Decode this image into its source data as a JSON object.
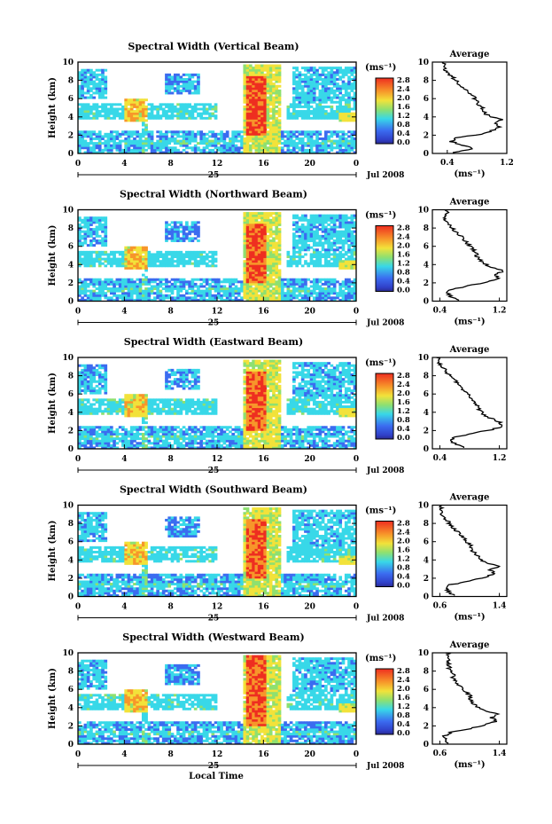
{
  "figure": {
    "shared_xlabel": "Local Time",
    "date_label": "Jul 2008",
    "day_label": "25",
    "x_ticks": [
      "0",
      "4",
      "8",
      "12",
      "16",
      "20",
      "0"
    ],
    "colorbar_unit": "(ms⁻¹)",
    "colorbar_ticks": [
      "2.8",
      "2.4",
      "2.0",
      "1.6",
      "1.2",
      "0.8",
      "0.4",
      "0.0"
    ],
    "colors": {
      "low": "#2a2aa8",
      "blue": "#3b6cf0",
      "cyan": "#38d8e8",
      "green": "#8ee070",
      "yellow": "#f2e23a",
      "orange": "#f7962a",
      "red": "#ee2e20"
    }
  },
  "chart_data": [
    {
      "type": "heatmap",
      "title": "Spectral Width (Vertical Beam)",
      "ylabel": "Height (km)",
      "xlabel": "Local Time",
      "xlim": [
        0,
        24
      ],
      "ylim": [
        0,
        10
      ],
      "y_ticks": [
        "0",
        "2",
        "4",
        "6",
        "8",
        "10"
      ],
      "colorbar": {
        "label": "(ms⁻¹)",
        "range": [
          0.0,
          2.8
        ]
      },
      "profile": {
        "title": "Average",
        "xlabel": "(ms⁻¹)",
        "xlim": [
          0.2,
          1.2
        ],
        "x_ticks": [
          "0.4",
          "1.2"
        ],
        "y_ticks": [
          "0",
          "2",
          "4",
          "6",
          "8",
          "10"
        ],
        "height": [
          0.4,
          0.8,
          1.2,
          1.6,
          2.0,
          2.4,
          2.8,
          3.2,
          3.6,
          4.0,
          4.4,
          4.8,
          5.2,
          5.6,
          6.0,
          6.4,
          6.8,
          7.2,
          7.6,
          8.0,
          8.4,
          8.8,
          9.2,
          9.6,
          10.0
        ],
        "values": [
          0.5,
          0.75,
          0.62,
          0.45,
          0.52,
          0.85,
          1.0,
          1.12,
          1.02,
          1.12,
          0.95,
          0.9,
          0.88,
          0.82,
          0.82,
          0.76,
          0.72,
          0.66,
          0.6,
          0.55,
          0.5,
          0.45,
          0.4,
          0.37,
          0.35
        ]
      }
    },
    {
      "type": "heatmap",
      "title": "Spectral Width (Northward Beam)",
      "ylabel": "Height (km)",
      "xlabel": "Local Time",
      "xlim": [
        0,
        24
      ],
      "ylim": [
        0,
        10
      ],
      "y_ticks": [
        "0",
        "2",
        "4",
        "6",
        "8",
        "10"
      ],
      "colorbar": {
        "label": "(ms⁻¹)",
        "range": [
          0.0,
          2.8
        ]
      },
      "profile": {
        "title": "Average",
        "xlabel": "(ms⁻¹)",
        "xlim": [
          0.3,
          1.3
        ],
        "x_ticks": [
          "0.4",
          "1.2"
        ],
        "y_ticks": [
          "0",
          "2",
          "4",
          "6",
          "8",
          "10"
        ],
        "height": [
          0.4,
          0.8,
          1.2,
          1.6,
          2.0,
          2.4,
          2.8,
          3.2,
          3.6,
          4.0,
          4.4,
          4.8,
          5.2,
          5.6,
          6.0,
          6.4,
          6.8,
          7.2,
          7.6,
          8.0,
          8.4,
          8.8,
          9.2,
          9.6,
          10.0
        ],
        "values": [
          0.65,
          0.55,
          0.5,
          0.55,
          0.8,
          1.05,
          1.2,
          1.15,
          1.25,
          1.1,
          1.0,
          0.95,
          0.9,
          0.88,
          0.85,
          0.8,
          0.75,
          0.72,
          0.66,
          0.6,
          0.55,
          0.5,
          0.48,
          0.45,
          0.5
        ]
      }
    },
    {
      "type": "heatmap",
      "title": "Spectral Width (Eastward Beam)",
      "ylabel": "Height (km)",
      "xlabel": "Local Time",
      "xlim": [
        0,
        24
      ],
      "ylim": [
        0,
        10
      ],
      "y_ticks": [
        "0",
        "2",
        "4",
        "6",
        "8",
        "10"
      ],
      "colorbar": {
        "label": "(ms⁻¹)",
        "range": [
          0.0,
          2.8
        ]
      },
      "profile": {
        "title": "Average",
        "xlabel": "",
        "xlim": [
          0.3,
          1.3
        ],
        "x_ticks": [
          "0.4",
          "1.2"
        ],
        "y_ticks": [
          "0",
          "2",
          "4",
          "6",
          "8",
          "10"
        ],
        "height": [
          0.4,
          0.8,
          1.2,
          1.6,
          2.0,
          2.4,
          2.8,
          3.2,
          3.6,
          4.0,
          4.4,
          4.8,
          5.2,
          5.6,
          6.0,
          6.4,
          6.8,
          7.2,
          7.6,
          8.0,
          8.4,
          8.8,
          9.2,
          9.6,
          10.0
        ],
        "values": [
          0.75,
          0.6,
          0.55,
          0.6,
          0.85,
          1.1,
          1.25,
          1.2,
          1.1,
          1.0,
          0.95,
          0.92,
          0.88,
          0.85,
          0.8,
          0.76,
          0.72,
          0.68,
          0.62,
          0.58,
          0.52,
          0.48,
          0.44,
          0.4,
          0.38
        ]
      }
    },
    {
      "type": "heatmap",
      "title": "Spectral Width (Southward Beam)",
      "ylabel": "Height (km)",
      "xlabel": "Local Time",
      "xlim": [
        0,
        24
      ],
      "ylim": [
        0,
        10
      ],
      "y_ticks": [
        "0",
        "2",
        "4",
        "6",
        "8",
        "10"
      ],
      "colorbar": {
        "label": "(ms⁻¹)",
        "range": [
          0.0,
          2.8
        ]
      },
      "profile": {
        "title": "Average",
        "xlabel": "(ms⁻¹)",
        "xlim": [
          0.5,
          1.5
        ],
        "x_ticks": [
          "0.6",
          "1.4"
        ],
        "y_ticks": [
          "0",
          "2",
          "4",
          "6",
          "8",
          "10"
        ],
        "height": [
          0.4,
          0.8,
          1.2,
          1.6,
          2.0,
          2.4,
          2.8,
          3.2,
          3.6,
          4.0,
          4.4,
          4.8,
          5.2,
          5.6,
          6.0,
          6.4,
          6.8,
          7.2,
          7.6,
          8.0,
          8.4,
          8.8,
          9.2,
          9.6,
          10.0
        ],
        "values": [
          0.8,
          0.72,
          0.68,
          0.75,
          1.0,
          1.2,
          1.35,
          1.28,
          1.4,
          1.2,
          1.15,
          1.1,
          1.05,
          1.02,
          1.0,
          0.95,
          0.9,
          0.86,
          0.8,
          0.76,
          0.72,
          0.68,
          0.64,
          0.62,
          0.62
        ]
      }
    },
    {
      "type": "heatmap",
      "title": "Spectral Width (Westward Beam)",
      "ylabel": "Height (km)",
      "xlabel": "Local Time",
      "xlim": [
        0,
        24
      ],
      "ylim": [
        0,
        10
      ],
      "y_ticks": [
        "0",
        "2",
        "4",
        "6",
        "8",
        "10"
      ],
      "colorbar": {
        "label": "(ms⁻¹)",
        "range": [
          0.0,
          2.8
        ]
      },
      "profile": {
        "title": "Average",
        "xlabel": "(ms⁻¹)",
        "xlim": [
          0.5,
          1.5
        ],
        "x_ticks": [
          "0.6",
          "1.4"
        ],
        "y_ticks": [
          "0",
          "2",
          "4",
          "6",
          "8",
          "10"
        ],
        "height": [
          0.4,
          0.8,
          1.2,
          1.6,
          2.0,
          2.4,
          2.8,
          3.2,
          3.6,
          4.0,
          4.4,
          4.8,
          5.2,
          5.6,
          6.0,
          6.4,
          6.8,
          7.2,
          7.6,
          8.0,
          8.4,
          8.8,
          9.2,
          9.6,
          10.0
        ],
        "values": [
          0.72,
          0.68,
          0.66,
          0.75,
          1.0,
          1.2,
          1.35,
          1.3,
          1.38,
          1.2,
          1.1,
          1.05,
          1.02,
          1.0,
          0.95,
          0.9,
          0.86,
          0.82,
          0.78,
          0.8,
          0.72,
          0.74,
          0.7,
          0.72,
          0.7
        ]
      }
    }
  ]
}
